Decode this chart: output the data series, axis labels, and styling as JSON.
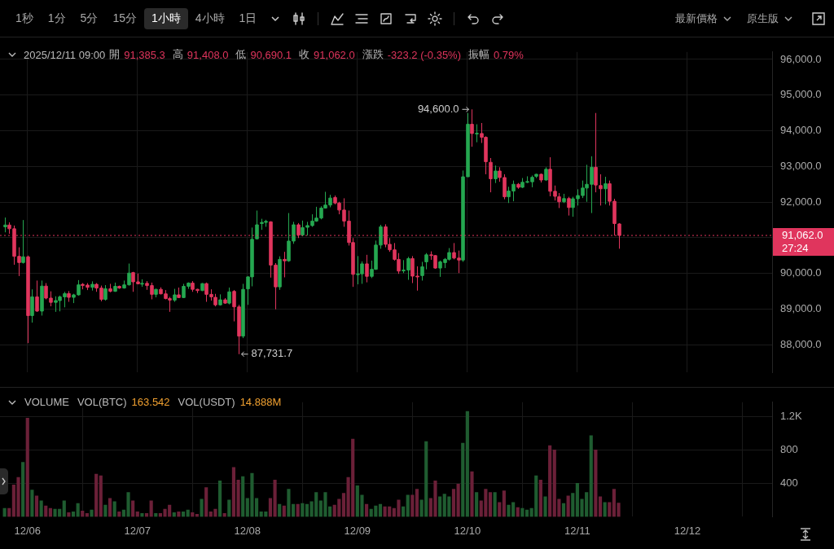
{
  "chart_data": [
    {
      "type": "other",
      "annotations": [
        "1秒",
        "1分",
        "5分",
        "15分",
        "1小時",
        "4小時",
        "1日",
        "最新價格",
        "原生版"
      ]
    },
    {
      "type": "candlestick",
      "x": [
        "2025-12-05T19:00",
        "2025-12-05T20:00",
        "2025-12-05T21:00",
        "2025-12-05T22:00",
        "2025-12-05T23:00",
        "2025-12-06T00:00",
        "2025-12-06T01:00",
        "2025-12-06T02:00",
        "2025-12-06T03:00",
        "2025-12-06T04:00",
        "2025-12-06T05:00",
        "2025-12-06T06:00",
        "2025-12-06T07:00",
        "2025-12-06T08:00",
        "2025-12-06T09:00",
        "2025-12-06T10:00",
        "2025-12-06T11:00",
        "2025-12-06T12:00",
        "2025-12-06T13:00",
        "2025-12-06T14:00",
        "2025-12-06T15:00",
        "2025-12-06T16:00",
        "2025-12-06T17:00",
        "2025-12-06T18:00",
        "2025-12-06T19:00",
        "2025-12-06T20:00",
        "2025-12-06T21:00",
        "2025-12-06T22:00",
        "2025-12-06T23:00",
        "2025-12-07T00:00",
        "2025-12-07T01:00",
        "2025-12-07T02:00",
        "2025-12-07T03:00",
        "2025-12-07T04:00",
        "2025-12-07T05:00",
        "2025-12-07T06:00",
        "2025-12-07T07:00",
        "2025-12-07T08:00",
        "2025-12-07T09:00",
        "2025-12-07T10:00",
        "2025-12-07T11:00",
        "2025-12-07T12:00",
        "2025-12-07T13:00",
        "2025-12-07T14:00",
        "2025-12-07T15:00",
        "2025-12-07T16:00",
        "2025-12-07T17:00",
        "2025-12-07T18:00",
        "2025-12-07T19:00",
        "2025-12-07T20:00",
        "2025-12-07T21:00",
        "2025-12-07T22:00",
        "2025-12-07T23:00",
        "2025-12-08T00:00",
        "2025-12-08T01:00",
        "2025-12-08T02:00",
        "2025-12-08T03:00",
        "2025-12-08T04:00",
        "2025-12-08T05:00",
        "2025-12-08T06:00",
        "2025-12-08T07:00",
        "2025-12-08T08:00",
        "2025-12-08T09:00",
        "2025-12-08T10:00",
        "2025-12-08T11:00",
        "2025-12-08T12:00",
        "2025-12-08T13:00",
        "2025-12-08T14:00",
        "2025-12-08T15:00",
        "2025-12-08T16:00",
        "2025-12-08T17:00",
        "2025-12-08T18:00",
        "2025-12-08T19:00",
        "2025-12-08T20:00",
        "2025-12-08T21:00",
        "2025-12-08T22:00",
        "2025-12-08T23:00",
        "2025-12-09T00:00",
        "2025-12-09T01:00",
        "2025-12-09T02:00",
        "2025-12-09T03:00",
        "2025-12-09T04:00",
        "2025-12-09T05:00",
        "2025-12-09T06:00",
        "2025-12-09T07:00",
        "2025-12-09T08:00",
        "2025-12-09T09:00",
        "2025-12-09T10:00",
        "2025-12-09T11:00",
        "2025-12-09T12:00",
        "2025-12-09T13:00",
        "2025-12-09T14:00",
        "2025-12-09T15:00",
        "2025-12-09T16:00",
        "2025-12-09T17:00",
        "2025-12-09T18:00",
        "2025-12-09T19:00",
        "2025-12-09T20:00",
        "2025-12-09T21:00",
        "2025-12-09T22:00",
        "2025-12-09T23:00",
        "2025-12-10T00:00",
        "2025-12-10T01:00",
        "2025-12-10T02:00",
        "2025-12-10T03:00",
        "2025-12-10T04:00",
        "2025-12-10T05:00",
        "2025-12-10T06:00",
        "2025-12-10T07:00",
        "2025-12-10T08:00",
        "2025-12-10T09:00",
        "2025-12-10T10:00",
        "2025-12-10T11:00",
        "2025-12-10T12:00",
        "2025-12-10T13:00",
        "2025-12-10T14:00",
        "2025-12-10T15:00",
        "2025-12-10T16:00",
        "2025-12-10T17:00",
        "2025-12-10T18:00",
        "2025-12-10T19:00",
        "2025-12-10T20:00",
        "2025-12-10T21:00",
        "2025-12-10T22:00",
        "2025-12-10T23:00",
        "2025-12-11T00:00",
        "2025-12-11T01:00",
        "2025-12-11T02:00",
        "2025-12-11T03:00",
        "2025-12-11T04:00",
        "2025-12-11T05:00",
        "2025-12-11T06:00",
        "2025-12-11T07:00",
        "2025-12-11T08:00",
        "2025-12-11T09:00"
      ],
      "ohlc": [
        [
          91305,
          91565,
          91150,
          91355
        ],
        [
          91355,
          91430,
          91110,
          91250
        ],
        [
          91250,
          91340,
          90240,
          90477
        ],
        [
          90477,
          90730,
          89923,
          90302
        ],
        [
          90302,
          91495,
          90274,
          90463
        ],
        [
          90463,
          90498,
          88042,
          88814
        ],
        [
          88814,
          89550,
          88617,
          89340
        ],
        [
          89340,
          89797,
          88919,
          88940
        ],
        [
          88940,
          89797,
          88814,
          89642
        ],
        [
          89642,
          89726,
          89270,
          89305
        ],
        [
          89305,
          89495,
          89074,
          89186
        ],
        [
          89186,
          89355,
          88919,
          89235
        ],
        [
          89235,
          89375,
          88933,
          89340
        ],
        [
          89340,
          89480,
          89046,
          89431
        ],
        [
          89431,
          89502,
          89200,
          89326
        ],
        [
          89326,
          89425,
          89165,
          89396
        ],
        [
          89396,
          89810,
          89375,
          89677
        ],
        [
          89691,
          89726,
          89551,
          89656
        ],
        [
          89670,
          89726,
          89530,
          89607
        ],
        [
          89607,
          89775,
          89516,
          89691
        ],
        [
          89691,
          89726,
          89481,
          89586
        ],
        [
          89586,
          89656,
          89214,
          89270
        ],
        [
          89270,
          89670,
          89235,
          89565
        ],
        [
          89565,
          89705,
          89467,
          89495
        ],
        [
          89495,
          89740,
          89481,
          89635
        ],
        [
          89635,
          89656,
          89565,
          89586
        ],
        [
          89586,
          89797,
          89572,
          89677
        ],
        [
          89677,
          90274,
          89656,
          90007
        ],
        [
          90021,
          90042,
          89481,
          89761
        ],
        [
          89761,
          89993,
          89691,
          89705
        ],
        [
          89705,
          89832,
          89621,
          89719
        ],
        [
          89719,
          89782,
          89537,
          89656
        ],
        [
          89656,
          89740,
          89270,
          89410
        ],
        [
          89410,
          89565,
          89326,
          89551
        ],
        [
          89551,
          89607,
          89410,
          89424
        ],
        [
          89424,
          89530,
          89270,
          89291
        ],
        [
          89291,
          89340,
          88919,
          89249
        ],
        [
          89249,
          89565,
          89200,
          89396
        ],
        [
          89396,
          89600,
          89305,
          89319
        ],
        [
          89319,
          89705,
          89305,
          89635
        ],
        [
          89635,
          89747,
          89565,
          89726
        ],
        [
          89726,
          89782,
          89481,
          89551
        ],
        [
          89551,
          89565,
          89446,
          89516
        ],
        [
          89516,
          89726,
          89502,
          89712
        ],
        [
          89712,
          89740,
          89200,
          89410
        ],
        [
          89410,
          89551,
          89235,
          89340
        ],
        [
          89326,
          89424,
          89073,
          89115
        ],
        [
          89115,
          89410,
          89094,
          89256
        ],
        [
          89256,
          89305,
          89143,
          89164
        ],
        [
          89164,
          89600,
          89129,
          89480
        ],
        [
          89494,
          89530,
          88652,
          89059
        ],
        [
          89059,
          89115,
          87731.7,
          88238
        ],
        [
          88238,
          89705,
          88182,
          89550
        ],
        [
          89564,
          89915,
          89115,
          89901
        ],
        [
          89901,
          91284,
          89635,
          90954
        ],
        [
          90968,
          91761,
          90954,
          91361
        ],
        [
          91396,
          91530,
          91220,
          91429
        ],
        [
          91429,
          91501,
          91305,
          91459
        ],
        [
          91445,
          91459,
          89880,
          90231
        ],
        [
          90231,
          90287,
          88989,
          89620
        ],
        [
          89620,
          90477,
          89536,
          90392
        ],
        [
          90392,
          90603,
          89887,
          90350
        ],
        [
          90350,
          91691,
          90322,
          90905
        ],
        [
          90905,
          91445,
          90828,
          91361
        ],
        [
          91361,
          91410,
          90989,
          91073
        ],
        [
          91073,
          91480,
          91038,
          91284
        ],
        [
          91291,
          91445,
          91059,
          91340
        ],
        [
          91340,
          91656,
          91305,
          91466
        ],
        [
          91466,
          91866,
          91445,
          91550
        ],
        [
          91550,
          91880,
          91515,
          91831
        ],
        [
          91831,
          92287,
          91817,
          91915
        ],
        [
          91915,
          92203,
          91852,
          92112
        ],
        [
          92126,
          92182,
          91936,
          91972
        ],
        [
          91972,
          92007,
          91656,
          91775
        ],
        [
          91775,
          92105,
          91305,
          91466
        ],
        [
          91466,
          91761,
          90779,
          90863
        ],
        [
          90863,
          90989,
          89620,
          89971
        ],
        [
          89971,
          90484,
          89691,
          89985
        ],
        [
          89985,
          90336,
          89705,
          90266
        ],
        [
          90266,
          90519,
          89747,
          89915
        ],
        [
          89915,
          90357,
          89866,
          90112
        ],
        [
          90112,
          90919,
          90098,
          90793
        ],
        [
          90793,
          91361,
          90688,
          91305
        ],
        [
          91305,
          91375,
          90730,
          90814
        ],
        [
          90814,
          90989,
          90603,
          90659
        ],
        [
          90659,
          90849,
          90357,
          90392
        ],
        [
          90392,
          90568,
          89985,
          90063
        ],
        [
          90077,
          90371,
          90007,
          90091
        ],
        [
          90091,
          90463,
          89817,
          90413
        ],
        [
          90413,
          90484,
          89726,
          89922
        ],
        [
          89922,
          90196,
          89515,
          89901
        ],
        [
          89936,
          90322,
          89796,
          90182
        ],
        [
          90322,
          90568,
          90112,
          90519
        ],
        [
          90519,
          90617,
          90379,
          90498
        ],
        [
          90498,
          90512,
          90126,
          90147
        ],
        [
          90147,
          90357,
          89901,
          90322
        ],
        [
          90301,
          90428,
          90147,
          90393
        ],
        [
          90393,
          90708,
          90358,
          90582
        ],
        [
          90582,
          90849,
          90393,
          90428
        ],
        [
          90428,
          90638,
          90007,
          90372
        ],
        [
          90372,
          92884,
          90322,
          92708
        ],
        [
          92708,
          94498,
          92708,
          94182
        ],
        [
          94182,
          94600,
          93551,
          93923
        ],
        [
          93916,
          94182,
          93677,
          93930
        ],
        [
          93923,
          94217,
          93656,
          93817
        ],
        [
          93817,
          93845,
          92779,
          93130
        ],
        [
          93115,
          93235,
          92273,
          92652
        ],
        [
          92652,
          93024,
          92533,
          92870
        ],
        [
          92870,
          92975,
          92568,
          92687
        ],
        [
          92687,
          92779,
          92077,
          92147
        ],
        [
          92147,
          92428,
          91972,
          92308
        ],
        [
          92308,
          92603,
          92021,
          92498
        ],
        [
          92498,
          92533,
          92372,
          92414
        ],
        [
          92414,
          92673,
          92393,
          92554
        ],
        [
          92561,
          92722,
          92533,
          92575
        ],
        [
          92568,
          92743,
          92414,
          92694
        ],
        [
          92722,
          92793,
          92673,
          92779
        ],
        [
          92779,
          92800,
          92547,
          92617
        ],
        [
          92617,
          92975,
          92603,
          92919
        ],
        [
          92919,
          93256,
          92161,
          92301
        ],
        [
          92301,
          92463,
          92042,
          92161
        ],
        [
          92147,
          92252,
          91831,
          92007
        ],
        [
          92007,
          92231,
          91972,
          92098
        ],
        [
          92098,
          92147,
          91621,
          91845
        ],
        [
          91845,
          92147,
          91586,
          92091
        ],
        [
          92091,
          92358,
          91901,
          92182
        ],
        [
          92182,
          92603,
          92112,
          92393
        ],
        [
          92393,
          93045,
          92007,
          92498
        ],
        [
          92498,
          93284,
          91691,
          92975
        ],
        [
          92975,
          94498,
          92273,
          92477
        ],
        [
          92463,
          92779,
          91901,
          92372
        ],
        [
          92372,
          92708,
          91936,
          92512
        ],
        [
          92512,
          92603,
          91901,
          92021
        ],
        [
          92021,
          92091,
          91059,
          91396
        ],
        [
          91385.3,
          91408.0,
          90690.1,
          91062.0
        ]
      ],
      "colors": [
        "#25a750",
        "#e0355d",
        "#e0355d",
        "#e0355d",
        "#25a750",
        "#e0355d",
        "#25a750",
        "#e0355d",
        "#25a750",
        "#e0355d",
        "#e0355d",
        "#25a750",
        "#25a750",
        "#25a750",
        "#e0355d",
        "#25a750",
        "#25a750",
        "#e0355d",
        "#e0355d",
        "#25a750",
        "#e0355d",
        "#e0355d",
        "#25a750",
        "#e0355d",
        "#25a750",
        "#e0355d",
        "#25a750",
        "#25a750",
        "#e0355d",
        "#e0355d",
        "#25a750",
        "#e0355d",
        "#e0355d",
        "#25a750",
        "#e0355d",
        "#e0355d",
        "#e0355d",
        "#25a750",
        "#e0355d",
        "#25a750",
        "#25a750",
        "#e0355d",
        "#e0355d",
        "#25a750",
        "#e0355d",
        "#e0355d",
        "#e0355d",
        "#25a750",
        "#e0355d",
        "#25a750",
        "#e0355d",
        "#e0355d",
        "#25a750",
        "#25a750",
        "#25a750",
        "#25a750",
        "#25a750",
        "#25a750",
        "#e0355d",
        "#e0355d",
        "#25a750",
        "#e0355d",
        "#25a750",
        "#25a750",
        "#e0355d",
        "#25a750",
        "#25a750",
        "#25a750",
        "#25a750",
        "#25a750",
        "#25a750",
        "#25a750",
        "#e0355d",
        "#e0355d",
        "#e0355d",
        "#e0355d",
        "#e0355d",
        "#25a750",
        "#25a750",
        "#e0355d",
        "#25a750",
        "#25a750",
        "#25a750",
        "#e0355d",
        "#e0355d",
        "#e0355d",
        "#e0355d",
        "#25a750",
        "#25a750",
        "#e0355d",
        "#e0355d",
        "#25a750",
        "#25a750",
        "#e0355d",
        "#e0355d",
        "#25a750",
        "#25a750",
        "#25a750",
        "#e0355d",
        "#e0355d",
        "#25a750",
        "#25a750",
        "#e0355d",
        "#25a750",
        "#e0355d",
        "#e0355d",
        "#e0355d",
        "#25a750",
        "#e0355d",
        "#e0355d",
        "#25a750",
        "#25a750",
        "#e0355d",
        "#25a750",
        "#25a750",
        "#25a750",
        "#25a750",
        "#e0355d",
        "#25a750",
        "#e0355d",
        "#e0355d",
        "#e0355d",
        "#25a750",
        "#e0355d",
        "#25a750",
        "#25a750",
        "#25a750",
        "#25a750",
        "#25a750",
        "#e0355d",
        "#e0355d",
        "#25a750",
        "#e0355d",
        "#e0355d",
        "#e0355d"
      ],
      "xlim": [
        "2025-12-05T18:00",
        "2025-12-12T18:30"
      ],
      "xticks": [
        {
          "value": "2025-12-06",
          "label": null
        },
        {
          "value": "2025-12-07",
          "label": null
        },
        {
          "value": "2025-12-08",
          "label": null
        },
        {
          "value": "2025-12-09",
          "label": null
        },
        {
          "value": "2025-12-10",
          "label": null
        },
        {
          "value": "2025-12-11",
          "label": null
        },
        {
          "value": "2025-12-12",
          "label": null
        }
      ],
      "ylim": [
        87220,
        96210
      ],
      "yticks": [
        {
          "value": 88000,
          "label": "88,000.0"
        },
        {
          "value": 89000,
          "label": "89,000.0"
        },
        {
          "value": 90000,
          "label": "90,000.0"
        },
        {
          "value": 91000,
          "label": null
        },
        {
          "value": 92000,
          "label": "92,000.0"
        },
        {
          "value": 93000,
          "label": "93,000.0"
        },
        {
          "value": 94000,
          "label": "94,000.0"
        },
        {
          "value": 95000,
          "label": "95,000.0"
        },
        {
          "value": 96000,
          "label": "96,000.0"
        }
      ],
      "tick_labels": "y",
      "grid": true,
      "ref_lines": [
        {
          "axis": "y",
          "value": 91062.0,
          "label": "91,062.0",
          "color": "#e0355d",
          "line_style": "dotted"
        }
      ],
      "annotations": [
        "2025/12/11 09:00",
        "開",
        "91,385.3",
        "高",
        "91,408.0",
        "低",
        "90,690.1",
        "收",
        "91,062.0",
        "漲跌",
        "-323.2 (-0.35%)",
        "振幅",
        "0.79%",
        {
          "text": "94,600.0",
          "x": "2025-12-10T01:00",
          "y": 94600
        },
        {
          "text": "87,731.7",
          "x": "2025-12-07T22:00",
          "y": 87731.7
        },
        "27:24"
      ]
    },
    {
      "type": "bar",
      "title": "VOLUME",
      "annotations": [
        "VOL(BTC)",
        "163.542",
        "VOL(USDT)",
        "14.888M"
      ],
      "x": [
        "2025-12-05T19:00",
        "2025-12-05T20:00",
        "2025-12-05T21:00",
        "2025-12-05T22:00",
        "2025-12-05T23:00",
        "2025-12-06T00:00",
        "2025-12-06T01:00",
        "2025-12-06T02:00",
        "2025-12-06T03:00",
        "2025-12-06T04:00",
        "2025-12-06T05:00",
        "2025-12-06T06:00",
        "2025-12-06T07:00",
        "2025-12-06T08:00",
        "2025-12-06T09:00",
        "2025-12-06T10:00",
        "2025-12-06T11:00",
        "2025-12-06T12:00",
        "2025-12-06T13:00",
        "2025-12-06T14:00",
        "2025-12-06T15:00",
        "2025-12-06T16:00",
        "2025-12-06T17:00",
        "2025-12-06T18:00",
        "2025-12-06T19:00",
        "2025-12-06T20:00",
        "2025-12-06T21:00",
        "2025-12-06T22:00",
        "2025-12-06T23:00",
        "2025-12-07T00:00",
        "2025-12-07T01:00",
        "2025-12-07T02:00",
        "2025-12-07T03:00",
        "2025-12-07T04:00",
        "2025-12-07T05:00",
        "2025-12-07T06:00",
        "2025-12-07T07:00",
        "2025-12-07T08:00",
        "2025-12-07T09:00",
        "2025-12-07T10:00",
        "2025-12-07T11:00",
        "2025-12-07T12:00",
        "2025-12-07T13:00",
        "2025-12-07T14:00",
        "2025-12-07T15:00",
        "2025-12-07T16:00",
        "2025-12-07T17:00",
        "2025-12-07T18:00",
        "2025-12-07T19:00",
        "2025-12-07T20:00",
        "2025-12-07T21:00",
        "2025-12-07T22:00",
        "2025-12-07T23:00",
        "2025-12-08T00:00",
        "2025-12-08T01:00",
        "2025-12-08T02:00",
        "2025-12-08T03:00",
        "2025-12-08T04:00",
        "2025-12-08T05:00",
        "2025-12-08T06:00",
        "2025-12-08T07:00",
        "2025-12-08T08:00",
        "2025-12-08T09:00",
        "2025-12-08T10:00",
        "2025-12-08T11:00",
        "2025-12-08T12:00",
        "2025-12-08T13:00",
        "2025-12-08T14:00",
        "2025-12-08T15:00",
        "2025-12-08T16:00",
        "2025-12-08T17:00",
        "2025-12-08T18:00",
        "2025-12-08T19:00",
        "2025-12-08T20:00",
        "2025-12-08T21:00",
        "2025-12-08T22:00",
        "2025-12-08T23:00",
        "2025-12-09T00:00",
        "2025-12-09T01:00",
        "2025-12-09T02:00",
        "2025-12-09T03:00",
        "2025-12-09T04:00",
        "2025-12-09T05:00",
        "2025-12-09T06:00",
        "2025-12-09T07:00",
        "2025-12-09T08:00",
        "2025-12-09T09:00",
        "2025-12-09T10:00",
        "2025-12-09T11:00",
        "2025-12-09T12:00",
        "2025-12-09T13:00",
        "2025-12-09T14:00",
        "2025-12-09T15:00",
        "2025-12-09T16:00",
        "2025-12-09T17:00",
        "2025-12-09T18:00",
        "2025-12-09T19:00",
        "2025-12-09T20:00",
        "2025-12-09T21:00",
        "2025-12-09T22:00",
        "2025-12-09T23:00",
        "2025-12-10T00:00",
        "2025-12-10T01:00",
        "2025-12-10T02:00",
        "2025-12-10T03:00",
        "2025-12-10T04:00",
        "2025-12-10T05:00",
        "2025-12-10T06:00",
        "2025-12-10T07:00",
        "2025-12-10T08:00",
        "2025-12-10T09:00",
        "2025-12-10T10:00",
        "2025-12-10T11:00",
        "2025-12-10T12:00",
        "2025-12-10T13:00",
        "2025-12-10T14:00",
        "2025-12-10T15:00",
        "2025-12-10T16:00",
        "2025-12-10T17:00",
        "2025-12-10T18:00",
        "2025-12-10T19:00",
        "2025-12-10T20:00",
        "2025-12-10T21:00",
        "2025-12-10T22:00",
        "2025-12-10T23:00",
        "2025-12-11T00:00",
        "2025-12-11T01:00",
        "2025-12-11T02:00",
        "2025-12-11T03:00",
        "2025-12-11T04:00",
        "2025-12-11T05:00",
        "2025-12-11T06:00",
        "2025-12-11T07:00",
        "2025-12-11T08:00",
        "2025-12-11T09:00"
      ],
      "values": [
        100,
        100,
        380,
        470,
        650,
        1180,
        320,
        250,
        190,
        130,
        100,
        90,
        90,
        190,
        50,
        60,
        160,
        70,
        40,
        80,
        510,
        490,
        140,
        220,
        180,
        60,
        80,
        290,
        190,
        60,
        40,
        40,
        190,
        40,
        40,
        90,
        140,
        50,
        60,
        60,
        80,
        50,
        30,
        210,
        350,
        60,
        90,
        430,
        40,
        200,
        590,
        440,
        480,
        220,
        520,
        220,
        60,
        60,
        220,
        440,
        150,
        130,
        330,
        150,
        150,
        160,
        150,
        180,
        290,
        190,
        290,
        120,
        140,
        210,
        280,
        470,
        930,
        370,
        260,
        150,
        90,
        130,
        150,
        120,
        120,
        100,
        200,
        120,
        260,
        260,
        330,
        200,
        900,
        220,
        430,
        240,
        270,
        240,
        330,
        390,
        880,
        1260,
        540,
        290,
        190,
        330,
        290,
        290,
        170,
        310,
        140,
        170,
        110,
        100,
        80,
        100,
        490,
        440,
        240,
        850,
        800,
        210,
        160,
        250,
        280,
        400,
        210,
        290,
        970,
        800,
        240,
        170,
        170,
        330,
        163.542
      ],
      "colors": [
        "#1f5c30",
        "#6b2038",
        "#6b2038",
        "#6b2038",
        "#1f5c30",
        "#6b2038",
        "#1f5c30",
        "#6b2038",
        "#1f5c30",
        "#6b2038",
        "#6b2038",
        "#1f5c30",
        "#1f5c30",
        "#1f5c30",
        "#6b2038",
        "#1f5c30",
        "#1f5c30",
        "#6b2038",
        "#6b2038",
        "#1f5c30",
        "#6b2038",
        "#6b2038",
        "#1f5c30",
        "#6b2038",
        "#1f5c30",
        "#6b2038",
        "#1f5c30",
        "#1f5c30",
        "#6b2038",
        "#6b2038",
        "#1f5c30",
        "#6b2038",
        "#6b2038",
        "#1f5c30",
        "#6b2038",
        "#6b2038",
        "#6b2038",
        "#1f5c30",
        "#6b2038",
        "#1f5c30",
        "#1f5c30",
        "#6b2038",
        "#6b2038",
        "#1f5c30",
        "#6b2038",
        "#6b2038",
        "#6b2038",
        "#1f5c30",
        "#6b2038",
        "#1f5c30",
        "#6b2038",
        "#6b2038",
        "#1f5c30",
        "#1f5c30",
        "#1f5c30",
        "#1f5c30",
        "#1f5c30",
        "#1f5c30",
        "#6b2038",
        "#6b2038",
        "#1f5c30",
        "#6b2038",
        "#1f5c30",
        "#1f5c30",
        "#6b2038",
        "#1f5c30",
        "#1f5c30",
        "#1f5c30",
        "#1f5c30",
        "#1f5c30",
        "#1f5c30",
        "#1f5c30",
        "#6b2038",
        "#6b2038",
        "#6b2038",
        "#6b2038",
        "#6b2038",
        "#1f5c30",
        "#1f5c30",
        "#6b2038",
        "#1f5c30",
        "#1f5c30",
        "#1f5c30",
        "#6b2038",
        "#6b2038",
        "#6b2038",
        "#6b2038",
        "#1f5c30",
        "#1f5c30",
        "#6b2038",
        "#6b2038",
        "#1f5c30",
        "#1f5c30",
        "#6b2038",
        "#6b2038",
        "#1f5c30",
        "#1f5c30",
        "#1f5c30",
        "#6b2038",
        "#6b2038",
        "#1f5c30",
        "#1f5c30",
        "#6b2038",
        "#1f5c30",
        "#6b2038",
        "#6b2038",
        "#6b2038",
        "#1f5c30",
        "#6b2038",
        "#6b2038",
        "#1f5c30",
        "#1f5c30",
        "#6b2038",
        "#1f5c30",
        "#1f5c30",
        "#1f5c30",
        "#1f5c30",
        "#6b2038",
        "#1f5c30",
        "#6b2038",
        "#6b2038",
        "#6b2038",
        "#1f5c30",
        "#6b2038",
        "#1f5c30",
        "#1f5c30",
        "#1f5c30",
        "#1f5c30",
        "#1f5c30",
        "#6b2038",
        "#6b2038",
        "#1f5c30",
        "#6b2038",
        "#6b2038",
        "#6b2038"
      ],
      "xlim": [
        "2025-12-05T18:00",
        "2025-12-12T18:30"
      ],
      "xticks": [
        {
          "value": "2025-12-06",
          "label": "12/06"
        },
        {
          "value": "2025-12-07",
          "label": "12/07"
        },
        {
          "value": "2025-12-08",
          "label": "12/08"
        },
        {
          "value": "2025-12-09",
          "label": "12/09"
        },
        {
          "value": "2025-12-10",
          "label": "12/10"
        },
        {
          "value": "2025-12-11",
          "label": "12/11"
        },
        {
          "value": "2025-12-12",
          "label": "12/12"
        }
      ],
      "ylim": [
        0,
        1370
      ],
      "yticks": [
        400,
        800,
        {
          "value": 1200,
          "label": "1.2K"
        }
      ],
      "grid": true
    }
  ]
}
